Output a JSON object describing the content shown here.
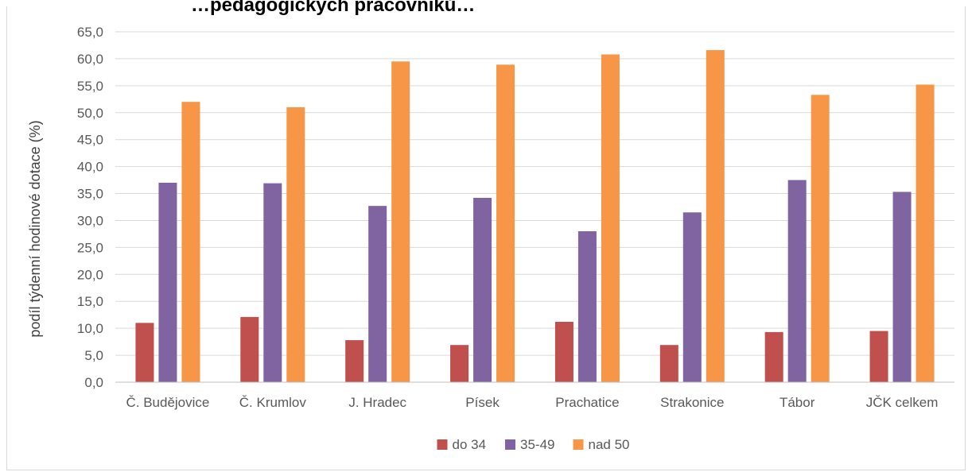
{
  "chart_data": {
    "type": "bar",
    "title": "…pedagogických pracovníků…",
    "ylabel": "podíl týdenní hodinové dotace (%)",
    "xlabel": "",
    "ylim": [
      0,
      65
    ],
    "ytick_step": 5,
    "ytick_labels": [
      "0,0",
      "5,0",
      "10,0",
      "15,0",
      "20,0",
      "25,0",
      "30,0",
      "35,0",
      "40,0",
      "45,0",
      "50,0",
      "55,0",
      "60,0",
      "65,0"
    ],
    "grid": true,
    "legend_position": "bottom",
    "categories": [
      "Č. Budějovice",
      "Č. Krumlov",
      "J. Hradec",
      "Písek",
      "Prachatice",
      "Strakonice",
      "Tábor",
      "JČK celkem"
    ],
    "series": [
      {
        "name": "do 34",
        "color": "#c0504d",
        "values": [
          11.0,
          12.1,
          7.8,
          6.9,
          11.2,
          6.9,
          9.3,
          9.5
        ]
      },
      {
        "name": "35-49",
        "color": "#8064a2",
        "values": [
          37.0,
          36.9,
          32.7,
          34.2,
          28.0,
          31.5,
          37.5,
          35.3
        ]
      },
      {
        "name": "nad 50",
        "color": "#f79646",
        "values": [
          52.0,
          51.0,
          59.5,
          58.9,
          60.8,
          61.6,
          53.3,
          55.2
        ]
      }
    ]
  }
}
